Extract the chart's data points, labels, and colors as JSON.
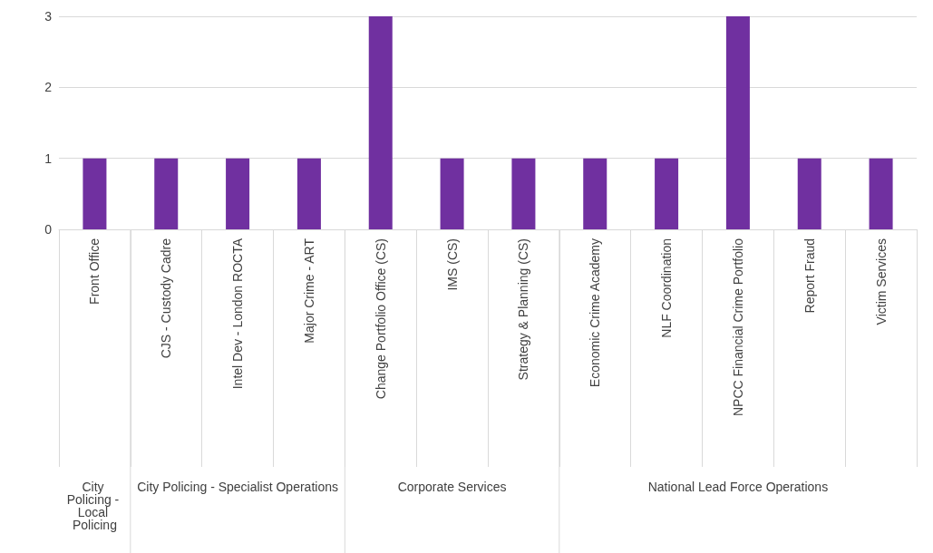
{
  "chart_data": {
    "type": "bar",
    "categories": [
      "Front Office",
      "CJS - Custody Cadre",
      "Intel Dev - London ROCTA",
      "Major Crime - ART",
      "Change Portfolio Office (CS)",
      "IMS (CS)",
      "Strategy & Planning (CS)",
      "Economic Crime Academy",
      "NLF Coordination",
      "NPCC Financial Crime Portfolio",
      "Report Fraud",
      "Victim Services"
    ],
    "values": [
      1,
      1,
      1,
      1,
      3,
      1,
      1,
      1,
      1,
      3,
      1,
      1
    ],
    "color": "#7030a0",
    "ylim": [
      0,
      3
    ],
    "yticks": [
      0,
      1,
      2,
      3
    ],
    "grid": "y",
    "annotations": [
      "City Policing - Local Policing",
      "City Policing - Specialist Operations",
      "Corporate Services",
      "National Lead Force Operations"
    ]
  }
}
